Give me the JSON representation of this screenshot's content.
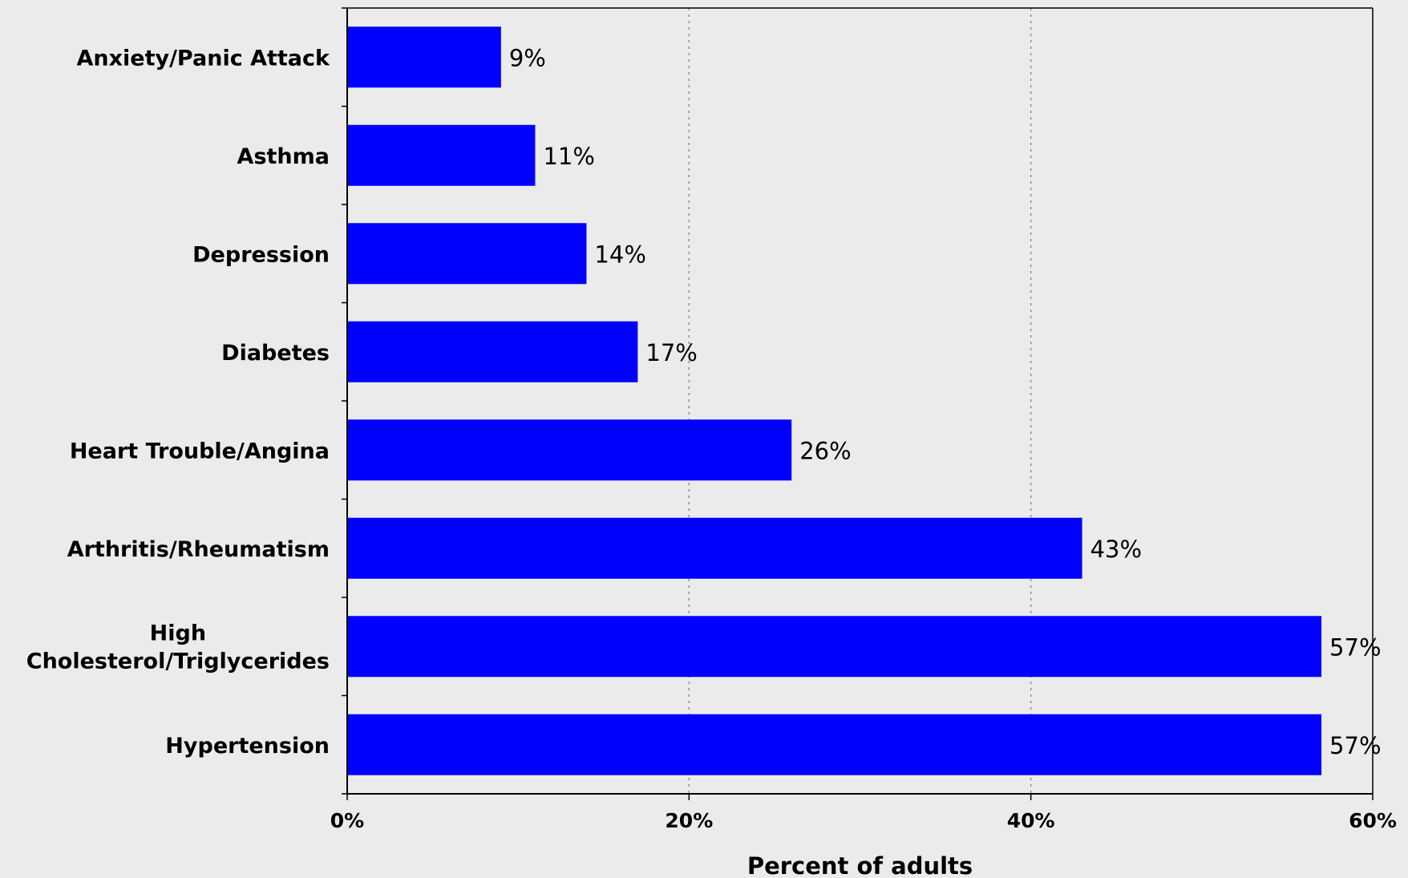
{
  "chart_data": {
    "type": "bar",
    "orientation": "horizontal",
    "categories": [
      "Anxiety/Panic Attack",
      "Asthma",
      "Depression",
      "Diabetes",
      "Heart Trouble/Angina",
      "Arthritis/Rheumatism",
      "High Cholesterol/Triglycerides",
      "Hypertension"
    ],
    "values": [
      9,
      11,
      14,
      17,
      26,
      43,
      57,
      57
    ],
    "data_labels": [
      "9%",
      "11%",
      "14%",
      "17%",
      "26%",
      "43%",
      "57%",
      "57%"
    ],
    "xlabel": "Percent of adults",
    "xlim": [
      0,
      60
    ],
    "xticks": [
      0,
      20,
      40,
      60
    ],
    "xtick_labels": [
      "0%",
      "20%",
      "40%",
      "60%"
    ],
    "grid": "vertical dotted",
    "bar_color": "#0000ff",
    "background_color": "#ebebeb"
  }
}
